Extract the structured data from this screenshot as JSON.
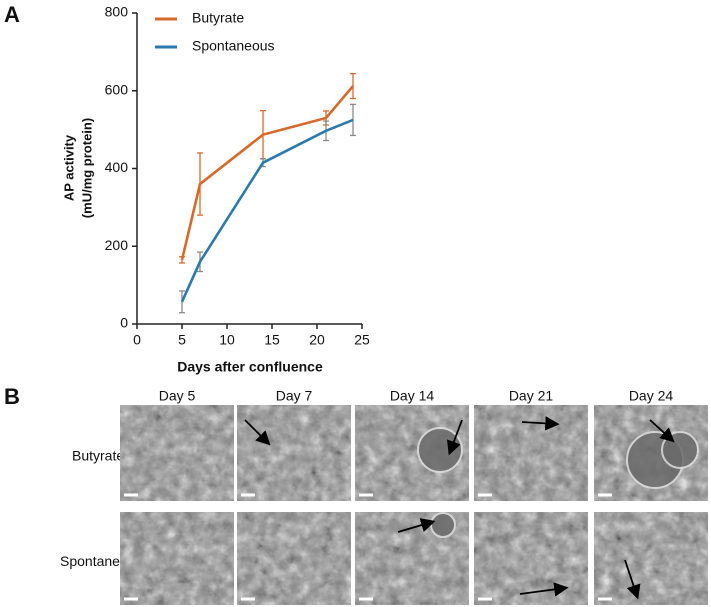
{
  "panel_labels": [
    "A",
    "B"
  ],
  "chart_data": {
    "type": "line",
    "ylabel": [
      "AP activity",
      "(mU/mg protein)"
    ],
    "xlabel": "Days after confluence",
    "xlim": [
      0,
      25
    ],
    "xticks": [
      0,
      5,
      10,
      15,
      20,
      25
    ],
    "ylim": [
      0,
      800
    ],
    "yticks": [
      0,
      200,
      400,
      600,
      800
    ],
    "legend": "top-left",
    "series": [
      {
        "name": "Butyrate",
        "color": "#d9692a",
        "error_color": "#d9692a",
        "x": [
          5,
          7,
          14,
          21,
          24
        ],
        "values": [
          165,
          360,
          487,
          530,
          612
        ],
        "errors": [
          8,
          80,
          62,
          18,
          32
        ]
      },
      {
        "name": "Spontaneous",
        "color": "#2a7ab0",
        "error_color": "#8a8a8a",
        "x": [
          5,
          7,
          14,
          21,
          24
        ],
        "values": [
          57,
          160,
          415,
          497,
          525
        ],
        "errors": [
          28,
          25,
          10,
          25,
          40
        ]
      }
    ]
  },
  "micrographs": {
    "columns": [
      "Day 5",
      "Day 7",
      "Day 14",
      "Day 21",
      "Day 24"
    ],
    "rows": [
      "Butyrate",
      "Spontaneous"
    ]
  }
}
